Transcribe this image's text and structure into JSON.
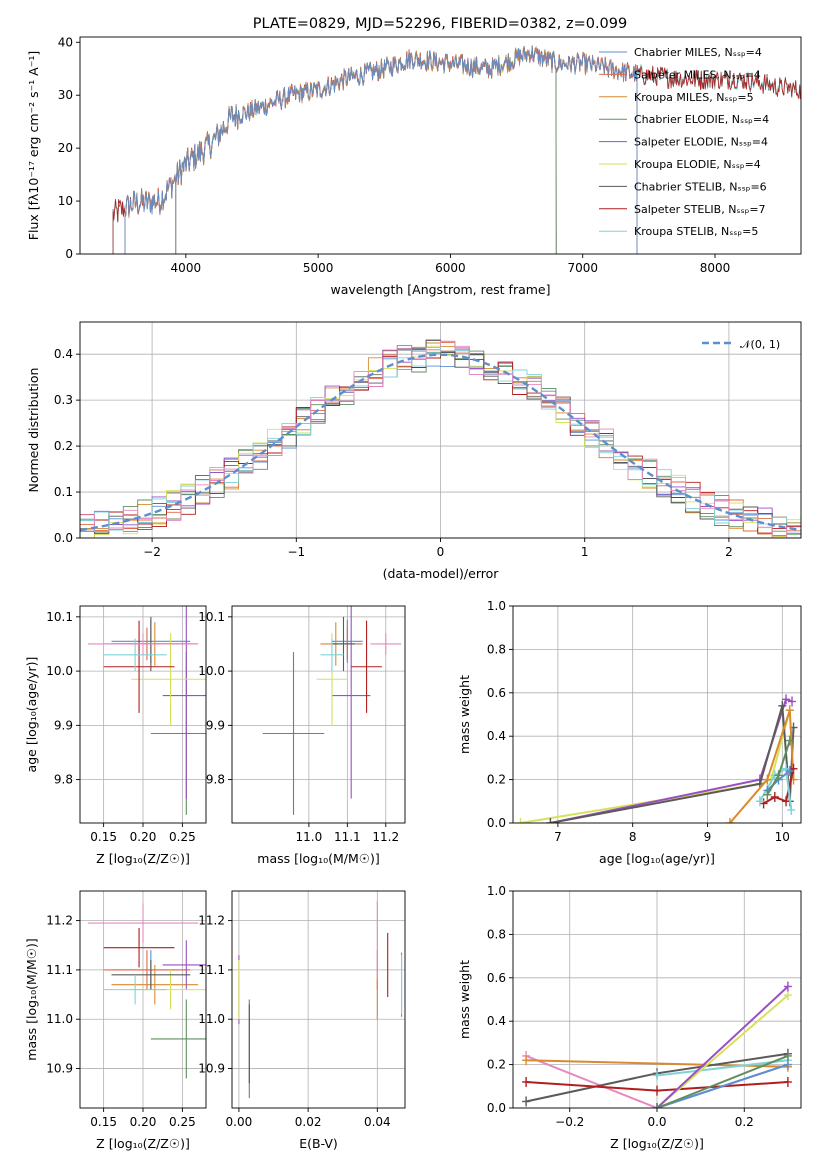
{
  "figure_title": "PLATE=0829, MJD=52296, FIBERID=0382, z=0.099",
  "colors": {
    "Chabrier MILES": "#5b8fd0",
    "Salpeter MILES": "#e06a4a",
    "Kroupa MILES": "#d98a2e",
    "Chabrier ELODIE": "#5e8f5e",
    "Salpeter ELODIE": "#9b4fc4",
    "Kroupa ELODIE": "#d6e25a",
    "Chabrier STELIB": "#5a5a5a",
    "Salpeter STELIB": "#b01e1e",
    "Kroupa STELIB": "#7fd3d8",
    "normal": "#5b8fd0",
    "hist_extra": "#e58ac0"
  },
  "chart_data": [
    {
      "id": "spectrum",
      "type": "line",
      "title": "PLATE=0829, MJD=52296, FIBERID=0382, z=0.099",
      "xlabel": "wavelength [Angstrom, rest frame]",
      "ylabel": "Flux [fλ10⁻¹⁷ erg cm⁻² s⁻¹ A⁻¹]",
      "xlim": [
        3200,
        8650
      ],
      "ylim": [
        0,
        41
      ],
      "xticks": [
        4000,
        5000,
        6000,
        7000,
        8000
      ],
      "yticks": [
        0,
        10,
        20,
        30,
        40
      ],
      "legend_position": "top-right",
      "legend": [
        "Chabrier MILES, Nₛₛₚ=4",
        "Salpeter MILES, Nₛₛₚ=4",
        "Kroupa MILES, Nₛₛₚ=5",
        "Chabrier ELODIE, Nₛₛₚ=4",
        "Salpeter ELODIE, Nₛₛₚ=4",
        "Kroupa ELODIE, Nₛₛₚ=4",
        "Chabrier STELIB, Nₛₛₚ=6",
        "Salpeter STELIB, Nₛₛₚ=7",
        "Kroupa STELIB, Nₛₛₚ=5"
      ],
      "series_names": [
        "Chabrier MILES",
        "Salpeter MILES",
        "Kroupa MILES",
        "Chabrier ELODIE",
        "Salpeter ELODIE",
        "Kroupa ELODIE",
        "Chabrier STELIB",
        "Salpeter STELIB",
        "Kroupa STELIB"
      ],
      "data_trend": {
        "x": [
          3450,
          3600,
          3800,
          4000,
          4200,
          4350,
          4500,
          4800,
          5000,
          5200,
          5500,
          5700,
          6000,
          6300,
          6600,
          6800,
          7000,
          7400,
          7800,
          8200,
          8600
        ],
        "y": [
          7.5,
          9.5,
          10,
          17,
          21,
          26,
          27,
          30,
          31,
          33,
          35,
          37,
          36,
          35,
          38,
          36,
          36,
          34,
          33,
          33,
          31
        ]
      },
      "model_coverage": {
        "MILES": [
          3540,
          7410
        ],
        "ELODIE": [
          3920,
          6800
        ],
        "STELIB": [
          3450,
          8650
        ]
      }
    },
    {
      "id": "residuals",
      "type": "histogram",
      "xlabel": "(data-model)/error",
      "ylabel": "Normed distribution",
      "xlim": [
        -2.5,
        2.5
      ],
      "ylim": [
        0,
        0.47
      ],
      "xticks": [
        -2,
        -1,
        0,
        1,
        2
      ],
      "yticks": [
        0.0,
        0.1,
        0.2,
        0.3,
        0.4
      ],
      "legend": "𝒩(0, 1)",
      "legend_position": "top-right",
      "bin_width": 0.1
    },
    {
      "id": "age_vs_Z",
      "type": "errorbar",
      "xlabel": "Z [log₁₀(Z/Z☉)]",
      "ylabel": "age  [log₁₀(age/yr)]",
      "xlim": [
        0.12,
        0.28
      ],
      "ylim": [
        9.72,
        10.12
      ],
      "xticks": [
        0.15,
        0.2,
        0.25
      ],
      "yticks": [
        9.8,
        9.9,
        10.0,
        10.1
      ],
      "points": [
        {
          "name": "Chabrier MILES",
          "x": 0.21,
          "y": 10.055,
          "xerr": 0.05,
          "yerr": 0.04
        },
        {
          "name": "Salpeter MILES",
          "x": 0.205,
          "y": 10.05,
          "xerr": 0.055,
          "yerr": 0.03
        },
        {
          "name": "Kroupa MILES",
          "x": 0.215,
          "y": 10.05,
          "xerr": 0.055,
          "yerr": 0.04
        },
        {
          "name": "Chabrier ELODIE",
          "x": 0.255,
          "y": 9.885,
          "xerr": 0.045,
          "yerr": 0.15
        },
        {
          "name": "Salpeter ELODIE",
          "x": 0.255,
          "y": 9.955,
          "xerr": 0.03,
          "yerr": 0.19
        },
        {
          "name": "Kroupa ELODIE",
          "x": 0.235,
          "y": 9.985,
          "xerr": 0.05,
          "yerr": 0.085
        },
        {
          "name": "Chabrier STELIB",
          "x": 0.21,
          "y": 10.05,
          "xerr": 0.05,
          "yerr": 0.05
        },
        {
          "name": "Salpeter STELIB",
          "x": 0.195,
          "y": 10.008,
          "xerr": 0.045,
          "yerr": 0.085
        },
        {
          "name": "Kroupa STELIB",
          "x": 0.19,
          "y": 10.03,
          "xerr": 0.04,
          "yerr": 0.03
        },
        {
          "name": "extra",
          "x": 0.2,
          "y": 10.05,
          "xerr": 0.07,
          "yerr": 0.02
        }
      ]
    },
    {
      "id": "age_vs_mass",
      "type": "errorbar",
      "xlabel": "mass [log₁₀(M/M☉)]",
      "ylabel": "",
      "xlim": [
        10.8,
        11.25
      ],
      "ylim": [
        9.72,
        10.12
      ],
      "xticks": [
        11.0,
        11.1,
        11.2
      ],
      "yticks": [
        9.8,
        9.9,
        10.0,
        10.1
      ],
      "points": [
        {
          "name": "Chabrier MILES",
          "x": 11.1,
          "y": 10.055,
          "xerr": 0.04,
          "yerr": 0.04
        },
        {
          "name": "Salpeter MILES",
          "x": 11.1,
          "y": 10.05,
          "xerr": 0.04,
          "yerr": 0.03
        },
        {
          "name": "Kroupa MILES",
          "x": 11.07,
          "y": 10.05,
          "xerr": 0.04,
          "yerr": 0.04
        },
        {
          "name": "Chabrier ELODIE",
          "x": 10.96,
          "y": 9.885,
          "xerr": 0.08,
          "yerr": 0.15
        },
        {
          "name": "Salpeter ELODIE",
          "x": 11.11,
          "y": 9.955,
          "xerr": 0.05,
          "yerr": 0.19
        },
        {
          "name": "Kroupa ELODIE",
          "x": 11.06,
          "y": 9.985,
          "xerr": 0.04,
          "yerr": 0.085
        },
        {
          "name": "Chabrier STELIB",
          "x": 11.09,
          "y": 10.05,
          "xerr": 0.03,
          "yerr": 0.05
        },
        {
          "name": "Salpeter STELIB",
          "x": 11.15,
          "y": 10.008,
          "xerr": 0.04,
          "yerr": 0.085
        },
        {
          "name": "Kroupa STELIB",
          "x": 11.06,
          "y": 10.03,
          "xerr": 0.03,
          "yerr": 0.03
        },
        {
          "name": "extra",
          "x": 11.2,
          "y": 10.05,
          "xerr": 0.04,
          "yerr": 0.02
        }
      ]
    },
    {
      "id": "weight_vs_age",
      "type": "line",
      "xlabel": "age  [log₁₀(age/yr)]",
      "ylabel": "mass weight",
      "xlim": [
        6.4,
        10.25
      ],
      "ylim": [
        0,
        1.0
      ],
      "xticks": [
        7,
        8,
        9,
        10
      ],
      "yticks": [
        0.0,
        0.2,
        0.4,
        0.6,
        0.8,
        1.0
      ],
      "series": [
        {
          "name": "Kroupa ELODIE",
          "x": [
            6.5,
            9.7,
            9.85,
            10.1
          ],
          "y": [
            0.0,
            0.18,
            0.2,
            0.52
          ]
        },
        {
          "name": "Salpeter ELODIE",
          "x": [
            6.9,
            9.7,
            10.05,
            10.13
          ],
          "y": [
            0.0,
            0.2,
            0.57,
            0.56
          ]
        },
        {
          "name": "Chabrier STELIB",
          "x": [
            6.9,
            9.7,
            10.0,
            10.1,
            10.15
          ],
          "y": [
            0.0,
            0.18,
            0.54,
            0.1,
            0.44
          ]
        },
        {
          "name": "Kroupa MILES",
          "x": [
            9.3,
            9.8,
            10.1,
            10.15
          ],
          "y": [
            0.0,
            0.2,
            0.52,
            0.2
          ]
        },
        {
          "name": "Salpeter STELIB",
          "x": [
            9.75,
            9.9,
            10.05,
            10.15
          ],
          "y": [
            0.09,
            0.12,
            0.1,
            0.25
          ]
        },
        {
          "name": "Kroupa STELIB",
          "x": [
            9.7,
            9.9,
            10.05,
            10.12
          ],
          "y": [
            0.1,
            0.22,
            0.25,
            0.06
          ]
        },
        {
          "name": "Chabrier MILES",
          "x": [
            9.8,
            9.95,
            10.1
          ],
          "y": [
            0.15,
            0.2,
            0.24
          ]
        },
        {
          "name": "Chabrier ELODIE",
          "x": [
            9.8,
            9.95,
            10.1
          ],
          "y": [
            0.13,
            0.22,
            0.38
          ]
        }
      ]
    },
    {
      "id": "mass_vs_Z",
      "type": "errorbar",
      "xlabel": "Z [log₁₀(Z/Z☉)]",
      "ylabel": "mass [log₁₀(M/M☉)]",
      "xlim": [
        0.12,
        0.28
      ],
      "ylim": [
        10.82,
        11.26
      ],
      "xticks": [
        0.15,
        0.2,
        0.25
      ],
      "yticks": [
        10.9,
        11.0,
        11.1,
        11.2
      ],
      "points": [
        {
          "name": "Chabrier MILES",
          "x": 0.21,
          "y": 11.1,
          "xerr": 0.05,
          "yerr": 0.04
        },
        {
          "name": "Salpeter MILES",
          "x": 0.205,
          "y": 11.1,
          "xerr": 0.055,
          "yerr": 0.04
        },
        {
          "name": "Kroupa MILES",
          "x": 0.215,
          "y": 11.07,
          "xerr": 0.055,
          "yerr": 0.04
        },
        {
          "name": "Chabrier ELODIE",
          "x": 0.255,
          "y": 10.96,
          "xerr": 0.045,
          "yerr": 0.08
        },
        {
          "name": "Salpeter ELODIE",
          "x": 0.255,
          "y": 11.11,
          "xerr": 0.03,
          "yerr": 0.05
        },
        {
          "name": "Kroupa ELODIE",
          "x": 0.235,
          "y": 11.06,
          "xerr": 0.05,
          "yerr": 0.04
        },
        {
          "name": "Chabrier STELIB",
          "x": 0.21,
          "y": 11.09,
          "xerr": 0.05,
          "yerr": 0.03
        },
        {
          "name": "Salpeter STELIB",
          "x": 0.195,
          "y": 11.145,
          "xerr": 0.045,
          "yerr": 0.04
        },
        {
          "name": "Kroupa STELIB",
          "x": 0.19,
          "y": 11.06,
          "xerr": 0.04,
          "yerr": 0.03
        },
        {
          "name": "extra",
          "x": 0.2,
          "y": 11.195,
          "xerr": 0.07,
          "yerr": 0.04
        }
      ]
    },
    {
      "id": "mass_vs_ebv",
      "type": "errorbar",
      "xlabel": "E(B-V)",
      "ylabel": "",
      "xlim": [
        -0.002,
        0.048
      ],
      "ylim": [
        10.82,
        11.26
      ],
      "xticks": [
        0.0,
        0.02,
        0.04
      ],
      "yticks": [
        10.9,
        11.0,
        11.1,
        11.2
      ],
      "points": [
        {
          "name": "Chabrier MILES",
          "x": 0.047,
          "y": 11.07,
          "xerr": 0,
          "yerr": 0.065
        },
        {
          "name": "Salpeter MILES",
          "x": 0.04,
          "y": 11.1,
          "xerr": 0,
          "yerr": 0.04
        },
        {
          "name": "Kroupa MILES",
          "x": 0.04,
          "y": 11.04,
          "xerr": 0,
          "yerr": 0.04
        },
        {
          "name": "Chabrier ELODIE",
          "x": 0.003,
          "y": 10.94,
          "xerr": 0,
          "yerr": 0.1
        },
        {
          "name": "Salpeter ELODIE",
          "x": 0.0,
          "y": 11.06,
          "xerr": 0,
          "yerr": 0.07
        },
        {
          "name": "Kroupa ELODIE",
          "x": 0.0,
          "y": 11.06,
          "xerr": 0,
          "yerr": 0.06
        },
        {
          "name": "Chabrier STELIB",
          "x": 0.003,
          "y": 10.95,
          "xerr": 0,
          "yerr": 0.08
        },
        {
          "name": "Salpeter STELIB",
          "x": 0.043,
          "y": 11.11,
          "xerr": 0,
          "yerr": 0.065
        },
        {
          "name": "Kroupa STELIB",
          "x": 0.047,
          "y": 11.07,
          "xerr": 0,
          "yerr": 0.06
        },
        {
          "name": "extra",
          "x": 0.04,
          "y": 11.16,
          "xerr": 0,
          "yerr": 0.08
        }
      ]
    },
    {
      "id": "weight_vs_Z",
      "type": "line",
      "xlabel": "Z [log₁₀(Z/Z☉)]",
      "ylabel": "mass weight",
      "xlim": [
        -0.33,
        0.33
      ],
      "ylim": [
        0,
        1.0
      ],
      "xticks": [
        -0.2,
        0.0,
        0.2
      ],
      "yticks": [
        0.0,
        0.2,
        0.4,
        0.6,
        0.8,
        1.0
      ],
      "series": [
        {
          "name": "extra",
          "x": [
            -0.3,
            0.0,
            0.3
          ],
          "y": [
            0.24,
            0.0,
            0.2
          ]
        },
        {
          "name": "Kroupa MILES",
          "x": [
            -0.3,
            0.3
          ],
          "y": [
            0.22,
            0.19
          ]
        },
        {
          "name": "Chabrier STELIB",
          "x": [
            -0.3,
            0.0,
            0.3
          ],
          "y": [
            0.03,
            0.16,
            0.25
          ]
        },
        {
          "name": "Salpeter STELIB",
          "x": [
            -0.3,
            0.0,
            0.3
          ],
          "y": [
            0.12,
            0.08,
            0.12
          ]
        },
        {
          "name": "Kroupa STELIB",
          "x": [
            0.0,
            0.3
          ],
          "y": [
            0.15,
            0.22
          ]
        },
        {
          "name": "Kroupa ELODIE",
          "x": [
            0.0,
            0.3
          ],
          "y": [
            0.0,
            0.52
          ]
        },
        {
          "name": "Salpeter ELODIE",
          "x": [
            0.0,
            0.3
          ],
          "y": [
            0.0,
            0.56
          ]
        },
        {
          "name": "Chabrier MILES",
          "x": [
            0.0,
            0.3
          ],
          "y": [
            0.0,
            0.2
          ]
        },
        {
          "name": "Chabrier ELODIE",
          "x": [
            0.0,
            0.3
          ],
          "y": [
            0.0,
            0.24
          ]
        }
      ]
    }
  ]
}
